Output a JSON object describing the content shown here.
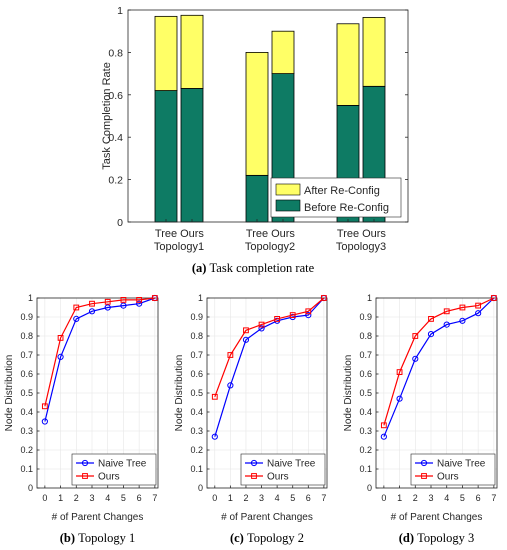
{
  "colors": {
    "after": "#ffff66",
    "before": "#0e7b64",
    "naive": "#0000ff",
    "ours": "#ff0000"
  },
  "chart_data": [
    {
      "type": "bar",
      "stacked": true,
      "caption_letter": "(a)",
      "caption_text": "Task completion rate",
      "ylabel": "Task Completion Rate",
      "ylim": [
        0,
        1
      ],
      "yticks": [
        "0",
        "0.2",
        "0.4",
        "0.6",
        "0.8",
        "1"
      ],
      "groups": [
        {
          "name": "Topology1",
          "bars": [
            "Tree",
            "Ours"
          ]
        },
        {
          "name": "Topology2",
          "bars": [
            "Tree",
            "Ours"
          ]
        },
        {
          "name": "Topology3",
          "bars": [
            "Tree",
            "Ours"
          ]
        }
      ],
      "series": [
        {
          "name": "Before Re-Config",
          "values": [
            0.62,
            0.63,
            0.22,
            0.7,
            0.55,
            0.64
          ]
        },
        {
          "name": "After Re-Config",
          "values": [
            0.35,
            0.345,
            0.58,
            0.2,
            0.385,
            0.325
          ]
        }
      ],
      "legend_position": "bottom-right",
      "grid": false
    },
    {
      "type": "line",
      "caption_letter": "(b)",
      "caption_text": "Topology 1",
      "xlabel": "# of Parent Changes",
      "ylabel": "Node Distribution",
      "x": [
        0,
        1,
        2,
        3,
        4,
        5,
        6,
        7
      ],
      "xlim": [
        -0.5,
        7.2
      ],
      "ylim": [
        0,
        1
      ],
      "xticks": [
        "0",
        "1",
        "2",
        "3",
        "4",
        "5",
        "6",
        "7"
      ],
      "yticks": [
        "0",
        "0.1",
        "0.2",
        "0.3",
        "0.4",
        "0.5",
        "0.6",
        "0.7",
        "0.8",
        "0.9",
        "1"
      ],
      "series": [
        {
          "name": "Naive Tree",
          "values": [
            0.35,
            0.69,
            0.89,
            0.93,
            0.95,
            0.96,
            0.97,
            1.0
          ]
        },
        {
          "name": "Ours",
          "values": [
            0.43,
            0.79,
            0.95,
            0.97,
            0.98,
            0.99,
            0.99,
            1.0
          ]
        }
      ],
      "legend_position": "bottom-right",
      "grid": true
    },
    {
      "type": "line",
      "caption_letter": "(c)",
      "caption_text": "Topology 2",
      "xlabel": "# of Parent Changes",
      "ylabel": "Node Distribution",
      "x": [
        0,
        1,
        2,
        3,
        4,
        5,
        6,
        7
      ],
      "xlim": [
        -0.5,
        7.2
      ],
      "ylim": [
        0,
        1
      ],
      "xticks": [
        "0",
        "1",
        "2",
        "3",
        "4",
        "5",
        "6",
        "7"
      ],
      "yticks": [
        "0",
        "0.1",
        "0.2",
        "0.3",
        "0.4",
        "0.5",
        "0.6",
        "0.7",
        "0.8",
        "0.9",
        "1"
      ],
      "series": [
        {
          "name": "Naive Tree",
          "values": [
            0.27,
            0.54,
            0.78,
            0.84,
            0.88,
            0.9,
            0.91,
            1.0
          ]
        },
        {
          "name": "Ours",
          "values": [
            0.48,
            0.7,
            0.83,
            0.86,
            0.89,
            0.91,
            0.93,
            1.0
          ]
        }
      ],
      "legend_position": "bottom-right",
      "grid": true
    },
    {
      "type": "line",
      "caption_letter": "(d)",
      "caption_text": "Topology 3",
      "xlabel": "# of Parent Changes",
      "ylabel": "Node Distribution",
      "x": [
        0,
        1,
        2,
        3,
        4,
        5,
        6,
        7
      ],
      "xlim": [
        -0.5,
        7.2
      ],
      "ylim": [
        0,
        1
      ],
      "xticks": [
        "0",
        "1",
        "2",
        "3",
        "4",
        "5",
        "6",
        "7"
      ],
      "yticks": [
        "0",
        "0.1",
        "0.2",
        "0.3",
        "0.4",
        "0.5",
        "0.6",
        "0.7",
        "0.8",
        "0.9",
        "1"
      ],
      "series": [
        {
          "name": "Naive Tree",
          "values": [
            0.27,
            0.47,
            0.68,
            0.81,
            0.86,
            0.88,
            0.92,
            1.0
          ]
        },
        {
          "name": "Ours",
          "values": [
            0.33,
            0.61,
            0.8,
            0.89,
            0.93,
            0.95,
            0.96,
            1.0
          ]
        }
      ],
      "legend_position": "bottom-right",
      "grid": true
    }
  ]
}
